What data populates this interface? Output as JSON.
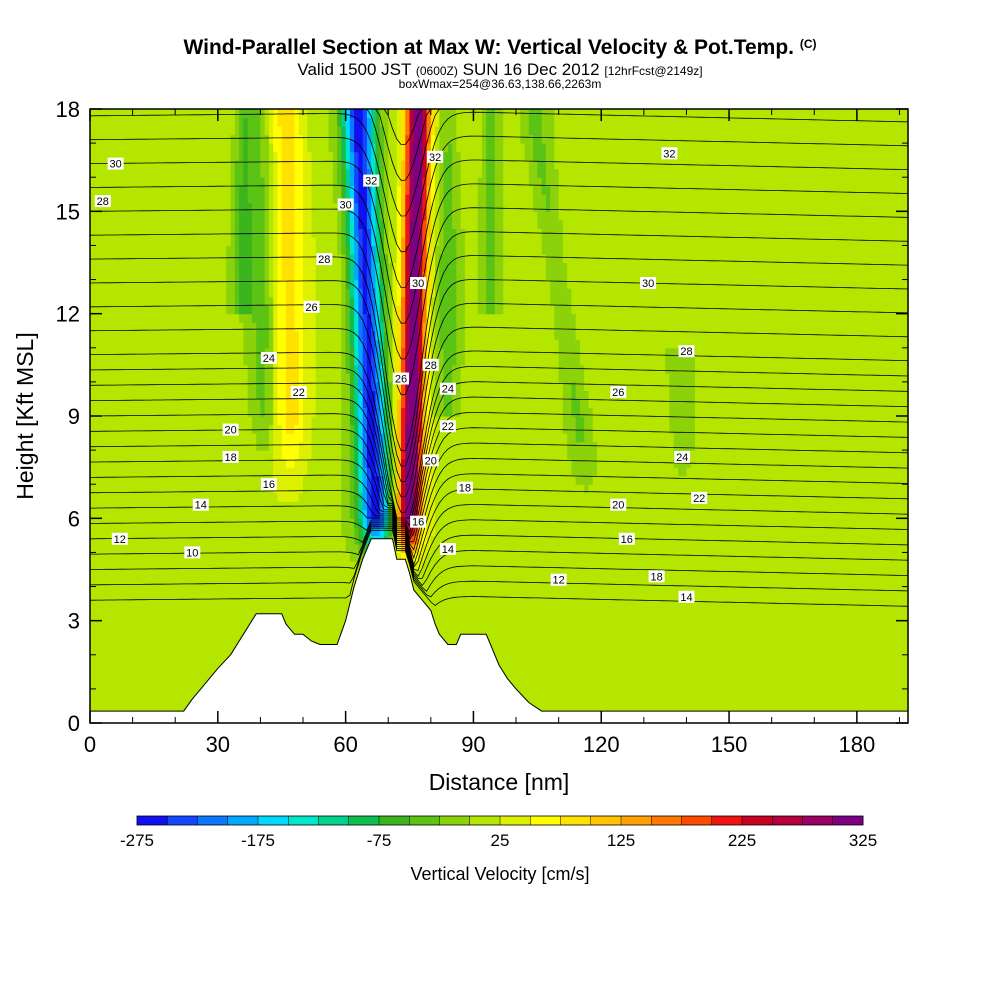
{
  "chart_data": {
    "type": "heatmap",
    "title": "Wind-Parallel Section at Max W: Vertical Velocity & Pot.Temp.",
    "title_tag": "(C)",
    "subtitle": {
      "valid": "Valid 1500 JST",
      "utc": "(0600Z)",
      "date": "SUN 16 Dec 2012",
      "forecast": "[12hrFcst@2149z]"
    },
    "subtitle2": "boxWmax=254@36.63,138.66,2263m",
    "xlabel": "Distance [nm]",
    "ylabel": "Height [Kft MSL]",
    "xlim": [
      0,
      192
    ],
    "ylim": [
      0,
      18
    ],
    "x_ticks": [
      "0",
      "30",
      "60",
      "90",
      "120",
      "150",
      "180"
    ],
    "y_ticks": [
      "0",
      "3",
      "6",
      "9",
      "12",
      "15",
      "18"
    ],
    "grid": false,
    "colorbar": {
      "label": "Vertical Velocity [cm/s]",
      "tick_labels": [
        "-275",
        "-175",
        "-75",
        "25",
        "125",
        "225",
        "325"
      ],
      "colors": [
        "#1010f0",
        "#1446ff",
        "#0a78ff",
        "#00a8ff",
        "#00d8ff",
        "#00e6c8",
        "#00d28c",
        "#10be50",
        "#3cb41e",
        "#5ac314",
        "#8cd20a",
        "#b4e600",
        "#dcf000",
        "#ffff00",
        "#ffe100",
        "#ffc300",
        "#ffa000",
        "#ff7800",
        "#ff4b00",
        "#f01414",
        "#c80023",
        "#b4003c",
        "#9b0064",
        "#7d0082"
      ]
    },
    "terrain_kft": [
      [
        0,
        0.35
      ],
      [
        22,
        0.35
      ],
      [
        24,
        0.7
      ],
      [
        26,
        1.0
      ],
      [
        28,
        1.3
      ],
      [
        30,
        1.6
      ],
      [
        33,
        2.0
      ],
      [
        36,
        2.6
      ],
      [
        39,
        3.2
      ],
      [
        45,
        3.2
      ],
      [
        46,
        2.9
      ],
      [
        48,
        2.6
      ],
      [
        50,
        2.6
      ],
      [
        52,
        2.4
      ],
      [
        54,
        2.3
      ],
      [
        58,
        2.3
      ],
      [
        60,
        3.0
      ],
      [
        62,
        4.0
      ],
      [
        64,
        4.8
      ],
      [
        66,
        5.4
      ],
      [
        71,
        5.4
      ],
      [
        72,
        4.8
      ],
      [
        74,
        4.8
      ],
      [
        75,
        4.4
      ],
      [
        76,
        3.9
      ],
      [
        78,
        3.6
      ],
      [
        80,
        3.3
      ],
      [
        81,
        2.9
      ],
      [
        82,
        2.6
      ],
      [
        84,
        2.3
      ],
      [
        86,
        2.3
      ],
      [
        87,
        2.6
      ],
      [
        93,
        2.6
      ],
      [
        94,
        2.3
      ],
      [
        96,
        1.7
      ],
      [
        98,
        1.3
      ],
      [
        100,
        1.0
      ],
      [
        103,
        0.6
      ],
      [
        106,
        0.35
      ],
      [
        192,
        0.35
      ]
    ],
    "field_features": [
      {
        "name": "downdraft-band",
        "x_base": 69,
        "x_top": 63,
        "value": -275
      },
      {
        "name": "updraft-band",
        "x_base": 74,
        "x_top": 77,
        "value": 325
      },
      {
        "name": "updraft-left",
        "x_base": 48,
        "x_top": 46,
        "value": 75
      },
      {
        "name": "downdraft-left",
        "x_base": 42,
        "x_top": 40,
        "value": -50
      },
      {
        "name": "downdraft-right",
        "x_base": 125,
        "x_top": 104,
        "value": -40
      }
    ],
    "isentropes_c": [
      10,
      12,
      14,
      16,
      18,
      20,
      22,
      24,
      26,
      28,
      30,
      32
    ],
    "isentrope_labels": [
      {
        "text": "30",
        "x": 6,
        "y": 16.4
      },
      {
        "text": "28",
        "x": 3,
        "y": 15.3
      },
      {
        "text": "12",
        "x": 7,
        "y": 5.4
      },
      {
        "text": "10",
        "x": 24,
        "y": 5.0
      },
      {
        "text": "14",
        "x": 26,
        "y": 6.4
      },
      {
        "text": "16",
        "x": 42,
        "y": 7.0
      },
      {
        "text": "18",
        "x": 33,
        "y": 7.8
      },
      {
        "text": "20",
        "x": 33,
        "y": 8.6
      },
      {
        "text": "22",
        "x": 49,
        "y": 9.7
      },
      {
        "text": "24",
        "x": 42,
        "y": 10.7
      },
      {
        "text": "26",
        "x": 52,
        "y": 12.2
      },
      {
        "text": "28",
        "x": 55,
        "y": 13.6
      },
      {
        "text": "30",
        "x": 60,
        "y": 15.2
      },
      {
        "text": "32",
        "x": 66,
        "y": 15.9
      },
      {
        "text": "32",
        "x": 81,
        "y": 16.6
      },
      {
        "text": "30",
        "x": 77,
        "y": 12.9
      },
      {
        "text": "28",
        "x": 80,
        "y": 10.5
      },
      {
        "text": "26",
        "x": 73,
        "y": 10.1
      },
      {
        "text": "24",
        "x": 84,
        "y": 9.8
      },
      {
        "text": "22",
        "x": 84,
        "y": 8.7
      },
      {
        "text": "20",
        "x": 80,
        "y": 7.7
      },
      {
        "text": "18",
        "x": 88,
        "y": 6.9
      },
      {
        "text": "16",
        "x": 77,
        "y": 5.9
      },
      {
        "text": "14",
        "x": 84,
        "y": 5.1
      },
      {
        "text": "12",
        "x": 110,
        "y": 4.2
      },
      {
        "text": "14",
        "x": 140,
        "y": 3.7
      },
      {
        "text": "16",
        "x": 126,
        "y": 5.4
      },
      {
        "text": "18",
        "x": 133,
        "y": 4.3
      },
      {
        "text": "20",
        "x": 124,
        "y": 6.4
      },
      {
        "text": "22",
        "x": 143,
        "y": 6.6
      },
      {
        "text": "24",
        "x": 139,
        "y": 7.8
      },
      {
        "text": "26",
        "x": 124,
        "y": 9.7
      },
      {
        "text": "28",
        "x": 140,
        "y": 10.9
      },
      {
        "text": "30",
        "x": 131,
        "y": 12.9
      },
      {
        "text": "32",
        "x": 136,
        "y": 16.7
      }
    ]
  }
}
